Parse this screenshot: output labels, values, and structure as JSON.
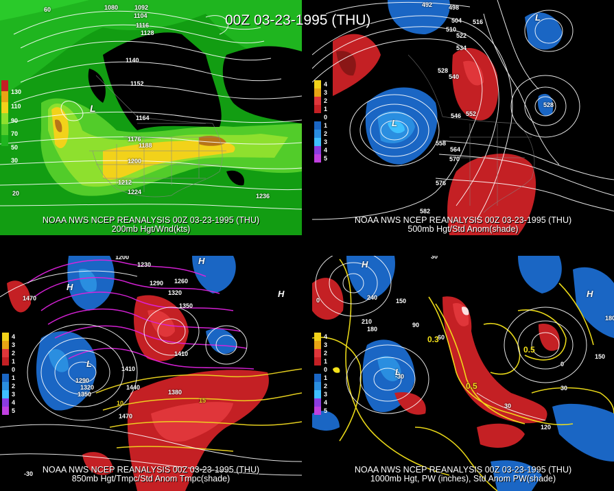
{
  "title": "00Z 03-23-1995 (THU)",
  "panels": [
    {
      "id": "p1",
      "line1": "NOAA NWS NCEP REANALYSIS 00Z 03-23-1995 (THU)",
      "line2": "200mb Hgt/Wnd(kts)",
      "legend": [
        "130",
        "110",
        "90",
        "70",
        "50",
        "30"
      ],
      "labels": [
        "1080",
        "1092",
        "1104",
        "1116",
        "1128",
        "1140",
        "1152",
        "1164",
        "1176",
        "1188",
        "1200",
        "1212",
        "1224",
        "1236",
        "60",
        "20",
        "L"
      ]
    },
    {
      "id": "p2",
      "line1": "NOAA NWS NCEP REANALYSIS 00Z 03-23-1995 (THU)",
      "line2": "500mb Hgt/Std Anom(shade)",
      "legend": [
        "4",
        "3",
        "2",
        "1",
        "0",
        "1",
        "2",
        "3",
        "4",
        "5"
      ],
      "labels": [
        "492",
        "498",
        "504",
        "510",
        "516",
        "522",
        "534",
        "528",
        "540",
        "546",
        "552",
        "558",
        "564",
        "570",
        "576",
        "582",
        "528",
        "L",
        "L"
      ]
    },
    {
      "id": "p3",
      "line1": "NOAA NWS NCEP REANALYSIS 00Z 03-23-1995 (THU)",
      "line2": "850mb Hgt/Tmpc/Std Anom Tmpc(shade)",
      "legend": [
        "4",
        "3",
        "2",
        "1",
        "0",
        "1",
        "2",
        "3",
        "4",
        "5"
      ],
      "labels": [
        "1200",
        "1230",
        "1290",
        "1260",
        "1320",
        "1350",
        "1410",
        "1470",
        "1290",
        "1320",
        "1350",
        "1380",
        "1410",
        "1440",
        "1470",
        "10",
        "15",
        "-30",
        "L",
        "H",
        "H",
        "H"
      ]
    },
    {
      "id": "p4",
      "line1": "NOAA NWS NCEP REANALYSIS 00Z 03-23-1995 (THU)",
      "line2": "1000mb Hgt, PW (inches), Std Anom PW(shade)",
      "legend": [
        "4",
        "3",
        "2",
        "1",
        "0",
        "1",
        "2",
        "3",
        "4",
        "5"
      ],
      "labels": [
        "30",
        "240",
        "150",
        "210",
        "180",
        "90",
        "60",
        "0",
        "-30",
        "30",
        "0.5",
        "0.5",
        "0.3",
        "180",
        "150",
        "120",
        "30",
        "0",
        "H",
        "L",
        "H"
      ]
    }
  ],
  "colors": {
    "wind": [
      "#129d12",
      "#1fb51f",
      "#52cc2a",
      "#8ee02e",
      "#f2d21a",
      "#e8a414",
      "#b77418"
    ],
    "warm": "#c42024",
    "cold": "#1a66c4",
    "contour": "#ffffff",
    "temp_magenta": "#dd22dd",
    "temp_yellow": "#f0d820",
    "pw_yellow": "#f4e21a"
  }
}
